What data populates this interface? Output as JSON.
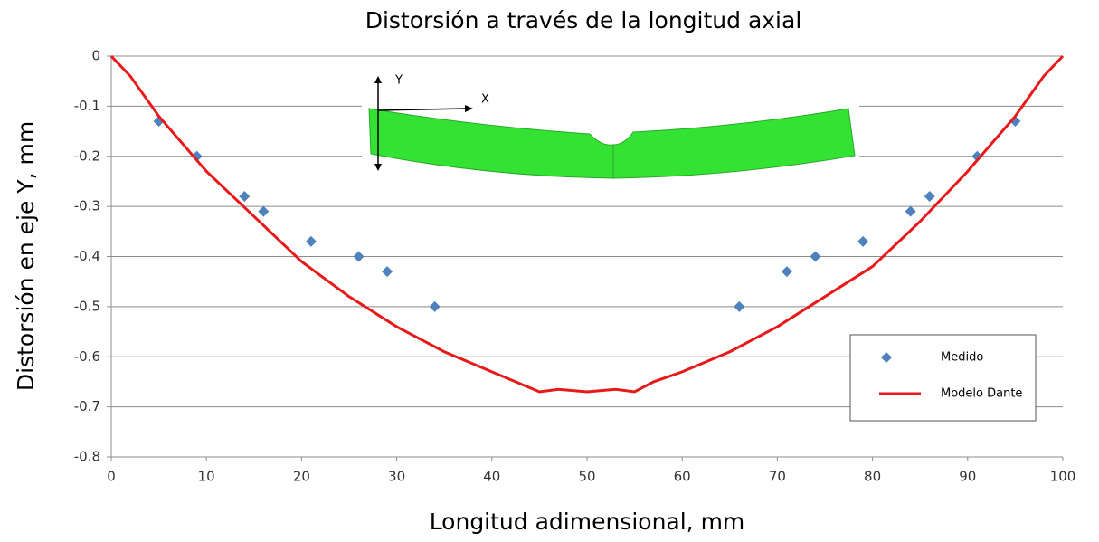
{
  "chart_data": {
    "type": "scatter",
    "title": "Distorsión a través de la longitud axial",
    "x_label": "Longitud adimensional, mm",
    "y_label": "Distorsión en eje Y, mm",
    "annotations": [
      "Y",
      "X"
    ],
    "xlim": [
      0,
      100
    ],
    "xticks": [
      0,
      10,
      20,
      30,
      40,
      50,
      60,
      70,
      80,
      90,
      100
    ],
    "ylim": [
      -0.8,
      0
    ],
    "yticks": [
      0,
      -0.1,
      -0.2,
      -0.3,
      -0.4,
      -0.5,
      -0.6,
      -0.7,
      -0.8
    ],
    "grid": true,
    "legend": "lower right",
    "series": [
      {
        "name": "Medido",
        "type": "scatter",
        "color": "#4f81bd",
        "x": [
          5,
          9,
          14,
          16,
          21,
          26,
          29,
          34,
          66,
          71,
          74,
          79,
          84,
          86,
          91,
          95
        ],
        "values": [
          -0.13,
          -0.2,
          -0.28,
          -0.31,
          -0.37,
          -0.4,
          -0.43,
          -0.5,
          -0.5,
          -0.43,
          -0.4,
          -0.37,
          -0.31,
          -0.28,
          -0.2,
          -0.13
        ]
      },
      {
        "name": "Modelo Dante",
        "type": "line",
        "color": "#e8191a",
        "x": [
          0,
          2,
          5,
          10,
          15,
          20,
          25,
          30,
          35,
          40,
          45,
          47,
          50,
          53,
          55,
          57,
          60,
          65,
          70,
          75,
          80,
          85,
          90,
          95,
          98,
          100
        ],
        "values": [
          0,
          -0.04,
          -0.12,
          -0.23,
          -0.32,
          -0.41,
          -0.48,
          -0.54,
          -0.59,
          -0.63,
          -0.67,
          -0.665,
          -0.67,
          -0.665,
          -0.67,
          -0.65,
          -0.63,
          -0.59,
          -0.54,
          -0.48,
          -0.42,
          -0.33,
          -0.23,
          -0.12,
          -0.04,
          0
        ]
      }
    ]
  }
}
